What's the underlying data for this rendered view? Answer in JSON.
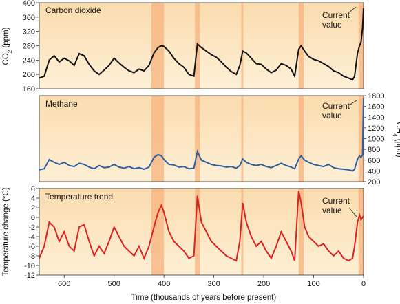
{
  "chart_data": {
    "type": "line",
    "xlabel": "Time (thousands of years before present)",
    "x_ticks": [
      600,
      500,
      400,
      300,
      200,
      100,
      0
    ],
    "x_range": [
      650,
      0
    ],
    "colors": {
      "panel_band_light": "#fdf0d6",
      "panel_band_mid": "#fbdcae",
      "highlight_band": "#f7b27c",
      "co2_line": "#111111",
      "methane_line": "#2e5e9e",
      "temperature_line": "#dd2222"
    },
    "panels": [
      {
        "title": "Carbon dioxide",
        "ylabel": "CO2 (ppm)",
        "ylabel_sub": "2",
        "ylabel_pre": "CO",
        "ylabel_post": " (ppm)",
        "y_axis_side": "left",
        "ylim": [
          160,
          400
        ],
        "y_ticks": [
          160,
          200,
          240,
          280,
          320,
          360,
          400
        ],
        "annotation": "Current value",
        "annotation_lines": [
          "Current",
          "value"
        ],
        "series": [
          {
            "values": [
              [
                650,
                190
              ],
              [
                640,
                195
              ],
              [
                630,
                240
              ],
              [
                620,
                252
              ],
              [
                610,
                235
              ],
              [
                600,
                245
              ],
              [
                590,
                238
              ],
              [
                580,
                225
              ],
              [
                570,
                258
              ],
              [
                560,
                252
              ],
              [
                550,
                228
              ],
              [
                540,
                210
              ],
              [
                530,
                200
              ],
              [
                520,
                212
              ],
              [
                510,
                225
              ],
              [
                500,
                245
              ],
              [
                490,
                232
              ],
              [
                480,
                220
              ],
              [
                470,
                210
              ],
              [
                460,
                205
              ],
              [
                450,
                215
              ],
              [
                440,
                210
              ],
              [
                430,
                225
              ],
              [
                420,
                260
              ],
              [
                412,
                275
              ],
              [
                405,
                280
              ],
              [
                400,
                278
              ],
              [
                390,
                265
              ],
              [
                380,
                245
              ],
              [
                370,
                230
              ],
              [
                360,
                220
              ],
              [
                350,
                200
              ],
              [
                340,
                195
              ],
              [
                333,
                285
              ],
              [
                325,
                275
              ],
              [
                315,
                265
              ],
              [
                305,
                255
              ],
              [
                295,
                248
              ],
              [
                285,
                235
              ],
              [
                275,
                220
              ],
              [
                265,
                208
              ],
              [
                255,
                200
              ],
              [
                248,
                225
              ],
              [
                242,
                265
              ],
              [
                235,
                260
              ],
              [
                225,
                245
              ],
              [
                215,
                230
              ],
              [
                205,
                228
              ],
              [
                195,
                215
              ],
              [
                185,
                205
              ],
              [
                175,
                212
              ],
              [
                165,
                230
              ],
              [
                155,
                225
              ],
              [
                145,
                215
              ],
              [
                138,
                195
              ],
              [
                130,
                270
              ],
              [
                125,
                280
              ],
              [
                118,
                265
              ],
              [
                110,
                250
              ],
              [
                100,
                242
              ],
              [
                90,
                238
              ],
              [
                80,
                230
              ],
              [
                70,
                222
              ],
              [
                60,
                210
              ],
              [
                50,
                205
              ],
              [
                40,
                195
              ],
              [
                30,
                190
              ],
              [
                22,
                185
              ],
              [
                18,
                195
              ],
              [
                12,
                260
              ],
              [
                8,
                280
              ],
              [
                5,
                290
              ],
              [
                2,
                330
              ],
              [
                0,
                385
              ]
            ]
          }
        ]
      },
      {
        "title": "Methane",
        "ylabel": "CH4 (ppb)",
        "ylabel_sub": "4",
        "ylabel_pre": "CH",
        "ylabel_post": " (ppb)",
        "y_axis_side": "right",
        "ylim": [
          200,
          1800
        ],
        "y_ticks": [
          200,
          400,
          600,
          800,
          1000,
          1200,
          1400,
          1600,
          1800
        ],
        "annotation": "Current value",
        "annotation_lines": [
          "Current",
          "value"
        ],
        "series": [
          {
            "values": [
              [
                650,
                420
              ],
              [
                640,
                440
              ],
              [
                630,
                610
              ],
              [
                620,
                560
              ],
              [
                610,
                520
              ],
              [
                600,
                560
              ],
              [
                590,
                500
              ],
              [
                580,
                480
              ],
              [
                570,
                540
              ],
              [
                560,
                520
              ],
              [
                550,
                470
              ],
              [
                540,
                440
              ],
              [
                530,
                500
              ],
              [
                520,
                460
              ],
              [
                510,
                470
              ],
              [
                500,
                520
              ],
              [
                490,
                470
              ],
              [
                480,
                450
              ],
              [
                470,
                480
              ],
              [
                460,
                440
              ],
              [
                450,
                460
              ],
              [
                440,
                430
              ],
              [
                430,
                470
              ],
              [
                420,
                650
              ],
              [
                412,
                700
              ],
              [
                405,
                680
              ],
              [
                400,
                610
              ],
              [
                390,
                520
              ],
              [
                380,
                510
              ],
              [
                370,
                470
              ],
              [
                360,
                480
              ],
              [
                350,
                440
              ],
              [
                340,
                450
              ],
              [
                333,
                760
              ],
              [
                325,
                600
              ],
              [
                315,
                560
              ],
              [
                305,
                520
              ],
              [
                295,
                500
              ],
              [
                285,
                490
              ],
              [
                275,
                470
              ],
              [
                265,
                480
              ],
              [
                255,
                450
              ],
              [
                248,
                500
              ],
              [
                242,
                620
              ],
              [
                235,
                560
              ],
              [
                225,
                520
              ],
              [
                215,
                500
              ],
              [
                205,
                520
              ],
              [
                195,
                480
              ],
              [
                185,
                460
              ],
              [
                175,
                500
              ],
              [
                165,
                540
              ],
              [
                155,
                500
              ],
              [
                145,
                470
              ],
              [
                138,
                440
              ],
              [
                130,
                620
              ],
              [
                125,
                680
              ],
              [
                118,
                600
              ],
              [
                110,
                560
              ],
              [
                100,
                520
              ],
              [
                90,
                500
              ],
              [
                80,
                480
              ],
              [
                70,
                520
              ],
              [
                60,
                460
              ],
              [
                50,
                440
              ],
              [
                40,
                430
              ],
              [
                30,
                420
              ],
              [
                22,
                400
              ],
              [
                18,
                430
              ],
              [
                12,
                620
              ],
              [
                8,
                680
              ],
              [
                5,
                650
              ],
              [
                2,
                700
              ],
              [
                0,
                1750
              ]
            ]
          }
        ]
      },
      {
        "title": "Temperature trend",
        "ylabel": "Temperature change (°C)",
        "y_axis_side": "left",
        "ylim": [
          -12,
          6
        ],
        "y_ticks": [
          -12,
          -10,
          -8,
          -6,
          -4,
          -2,
          0,
          2,
          4,
          6
        ],
        "annotation": "Current value",
        "annotation_lines": [
          "Current",
          "value"
        ],
        "series": [
          {
            "values": [
              [
                650,
                -8.5
              ],
              [
                640,
                -6
              ],
              [
                630,
                -1
              ],
              [
                620,
                -2
              ],
              [
                610,
                -5
              ],
              [
                600,
                -3
              ],
              [
                590,
                -6
              ],
              [
                580,
                -7
              ],
              [
                570,
                -2
              ],
              [
                560,
                -1.5
              ],
              [
                550,
                -5
              ],
              [
                540,
                -8
              ],
              [
                530,
                -6
              ],
              [
                520,
                -7.5
              ],
              [
                510,
                -5
              ],
              [
                500,
                -2
              ],
              [
                490,
                -4
              ],
              [
                480,
                -6
              ],
              [
                470,
                -7
              ],
              [
                460,
                -8
              ],
              [
                450,
                -6
              ],
              [
                440,
                -8.5
              ],
              [
                430,
                -6
              ],
              [
                420,
                -2
              ],
              [
                412,
                1
              ],
              [
                405,
                2.5
              ],
              [
                400,
                1
              ],
              [
                390,
                -3
              ],
              [
                380,
                -5
              ],
              [
                370,
                -6
              ],
              [
                360,
                -7
              ],
              [
                350,
                -8.5
              ],
              [
                340,
                -8
              ],
              [
                333,
                4.5
              ],
              [
                325,
                -1
              ],
              [
                315,
                -3
              ],
              [
                305,
                -5
              ],
              [
                295,
                -6
              ],
              [
                285,
                -7
              ],
              [
                275,
                -8
              ],
              [
                265,
                -8.5
              ],
              [
                255,
                -9
              ],
              [
                248,
                -5
              ],
              [
                242,
                3
              ],
              [
                235,
                -1
              ],
              [
                225,
                -4
              ],
              [
                215,
                -6
              ],
              [
                205,
                -5
              ],
              [
                195,
                -7
              ],
              [
                185,
                -8.5
              ],
              [
                175,
                -6
              ],
              [
                165,
                -3
              ],
              [
                155,
                -5
              ],
              [
                145,
                -7
              ],
              [
                138,
                -9
              ],
              [
                130,
                5.5
              ],
              [
                125,
                3
              ],
              [
                118,
                -2
              ],
              [
                110,
                -4
              ],
              [
                100,
                -5
              ],
              [
                90,
                -6
              ],
              [
                80,
                -5.5
              ],
              [
                70,
                -7
              ],
              [
                60,
                -8
              ],
              [
                50,
                -7
              ],
              [
                40,
                -8.5
              ],
              [
                30,
                -9
              ],
              [
                22,
                -8.5
              ],
              [
                18,
                -6
              ],
              [
                12,
                -1
              ],
              [
                8,
                0.5
              ],
              [
                5,
                -0.5
              ],
              [
                2,
                0
              ],
              [
                0,
                0.3
              ]
            ]
          }
        ]
      }
    ],
    "highlight_bands": [
      [
        425,
        400
      ],
      [
        338,
        328
      ],
      [
        245,
        241
      ],
      [
        130,
        120
      ],
      [
        10,
        0
      ]
    ]
  }
}
